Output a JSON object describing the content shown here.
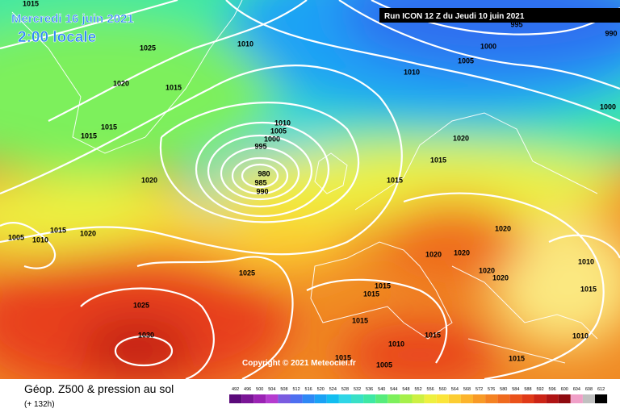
{
  "header": {
    "date": "Mercredi 16 juin 2021",
    "time": "2:00 locale",
    "run": "Run ICON 12 Z du Jeudi 10 juin 2021"
  },
  "copyright": "Copyright © 2021 Meteociel.fr",
  "footer": {
    "title": "Géop. Z500 & pression au sol",
    "subtitle": "(+ 132h)"
  },
  "legend": {
    "levels": [
      492,
      496,
      500,
      504,
      508,
      512,
      516,
      520,
      524,
      528,
      532,
      536,
      540,
      544,
      548,
      552,
      556,
      560,
      564,
      568,
      572,
      576,
      580,
      584,
      588,
      592,
      596,
      600,
      604,
      608,
      612
    ],
    "colors": [
      "#5b0a7a",
      "#7a1596",
      "#9b23b4",
      "#b53ccf",
      "#7a5ce0",
      "#4e6ff0",
      "#2f88f5",
      "#1aa2f5",
      "#12bdf0",
      "#2fd6e6",
      "#39e0c6",
      "#3ee8a4",
      "#56ec7c",
      "#7df05c",
      "#a6f04a",
      "#cdf043",
      "#eef040",
      "#fbe53a",
      "#fccd32",
      "#fcb42c",
      "#f89a26",
      "#f48222",
      "#ef6a1e",
      "#ea521b",
      "#e03a18",
      "#cc2416",
      "#b01414",
      "#8e0a10",
      "#f0a0c8",
      "#c0c0c0",
      "#000000"
    ]
  },
  "isobar_labels": [
    1015,
    1025,
    1020,
    1015,
    1015,
    1015,
    1020,
    1010,
    1010,
    1005,
    1000,
    995,
    980,
    985,
    990,
    1015,
    1015,
    1020,
    1005,
    1010,
    1015,
    1020,
    1025,
    1025,
    1030,
    995,
    1000,
    1005,
    1010,
    990,
    1000,
    1020,
    1020,
    1020,
    1020,
    1020,
    1010,
    1015,
    1015,
    1015,
    1015,
    1015,
    1010,
    1010,
    1015,
    1015,
    1005
  ]
}
